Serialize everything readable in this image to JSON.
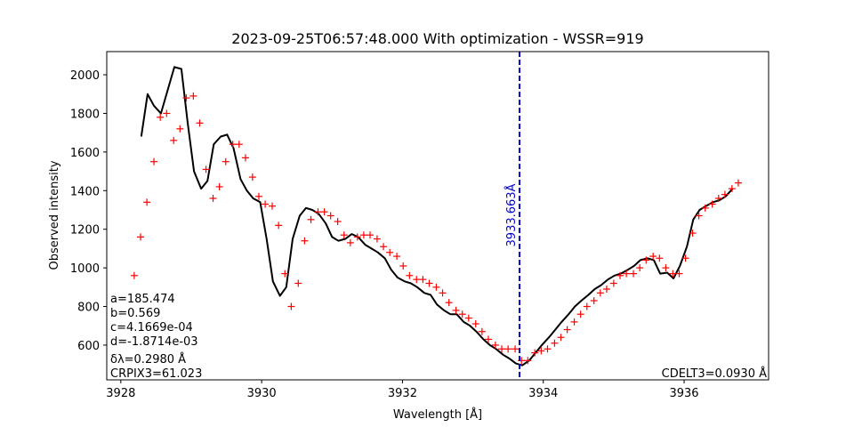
{
  "chart_data": {
    "type": "line",
    "title": "2023-09-25T06:57:48.000 With optimization - WSSR=919",
    "xlabel": "Wavelength [Å]",
    "ylabel": "Observed intensity",
    "xlim": [
      3927.8,
      3937.2
    ],
    "ylim": [
      420,
      2120
    ],
    "xticks": [
      3928,
      3930,
      3932,
      3934,
      3936
    ],
    "yticks": [
      600,
      800,
      1000,
      1200,
      1400,
      1600,
      1800,
      2000
    ],
    "grid": false,
    "series": [
      {
        "kind": "line",
        "color": "#000000",
        "x": [
          3928.29,
          3928.38,
          3928.47,
          3928.57,
          3928.76,
          3928.86,
          3928.95,
          3929.04,
          3929.14,
          3929.23,
          3929.32,
          3929.42,
          3929.51,
          3929.6,
          3929.7,
          3929.79,
          3929.88,
          3929.98,
          3930.07,
          3930.16,
          3930.26,
          3930.35,
          3930.44,
          3930.54,
          3930.63,
          3930.72,
          3930.81,
          3930.91,
          3931.0,
          3931.09,
          3931.19,
          3931.28,
          3931.37,
          3931.47,
          3931.56,
          3931.65,
          3931.75,
          3931.84,
          3931.93,
          3932.03,
          3932.12,
          3932.21,
          3932.31,
          3932.4,
          3932.49,
          3932.59,
          3932.68,
          3932.77,
          3932.87,
          3932.96,
          3933.05,
          3933.15,
          3933.24,
          3933.33,
          3933.43,
          3933.52,
          3933.61,
          3933.7,
          3933.8,
          3933.89,
          3933.98,
          3934.08,
          3934.17,
          3934.26,
          3934.36,
          3934.45,
          3934.54,
          3934.64,
          3934.73,
          3934.82,
          3934.92,
          3935.01,
          3935.1,
          3935.2,
          3935.29,
          3935.38,
          3935.48,
          3935.57,
          3935.66,
          3935.76,
          3935.85,
          3935.94,
          3936.04,
          3936.13,
          3936.22,
          3936.31,
          3936.41,
          3936.5,
          3936.59,
          3936.69
        ],
        "y": [
          1680,
          1900,
          1840,
          1800,
          2040,
          2030,
          1750,
          1500,
          1410,
          1450,
          1640,
          1680,
          1690,
          1620,
          1460,
          1400,
          1360,
          1340,
          1150,
          930,
          855,
          900,
          1150,
          1270,
          1310,
          1300,
          1280,
          1230,
          1160,
          1140,
          1150,
          1175,
          1160,
          1120,
          1100,
          1080,
          1050,
          990,
          950,
          930,
          920,
          900,
          870,
          860,
          810,
          780,
          760,
          760,
          720,
          700,
          670,
          630,
          600,
          580,
          550,
          530,
          505,
          495,
          520,
          560,
          600,
          640,
          680,
          720,
          760,
          800,
          830,
          860,
          890,
          910,
          940,
          960,
          970,
          990,
          1010,
          1040,
          1050,
          1040,
          970,
          975,
          945,
          1010,
          1110,
          1250,
          1300,
          1320,
          1340,
          1350,
          1370,
          1410
        ]
      },
      {
        "kind": "scatter",
        "marker": "+",
        "color": "#ff0000",
        "x": [
          3928.19,
          3928.28,
          3928.37,
          3928.47,
          3928.56,
          3928.65,
          3928.75,
          3928.84,
          3928.93,
          3929.03,
          3929.12,
          3929.21,
          3929.31,
          3929.4,
          3929.49,
          3929.59,
          3929.68,
          3929.77,
          3929.87,
          3929.96,
          3930.05,
          3930.15,
          3930.24,
          3930.33,
          3930.42,
          3930.52,
          3930.61,
          3930.7,
          3930.8,
          3930.89,
          3930.98,
          3931.08,
          3931.17,
          3931.26,
          3931.36,
          3931.45,
          3931.54,
          3931.64,
          3931.73,
          3931.82,
          3931.92,
          3932.01,
          3932.1,
          3932.2,
          3932.29,
          3932.38,
          3932.48,
          3932.57,
          3932.66,
          3932.76,
          3932.85,
          3932.94,
          3933.04,
          3933.13,
          3933.22,
          3933.32,
          3933.41,
          3933.5,
          3933.6,
          3933.69,
          3933.78,
          3933.88,
          3933.97,
          3934.06,
          3934.16,
          3934.25,
          3934.34,
          3934.44,
          3934.53,
          3934.62,
          3934.72,
          3934.81,
          3934.9,
          3935.0,
          3935.09,
          3935.18,
          3935.28,
          3935.37,
          3935.46,
          3935.56,
          3935.65,
          3935.74,
          3935.84,
          3935.93,
          3936.02,
          3936.12,
          3936.21,
          3936.3,
          3936.4,
          3936.49,
          3936.58,
          3936.68,
          3936.77
        ],
        "y": [
          960,
          1160,
          1340,
          1550,
          1780,
          1800,
          1660,
          1720,
          1880,
          1890,
          1750,
          1510,
          1360,
          1420,
          1550,
          1640,
          1640,
          1570,
          1470,
          1370,
          1330,
          1320,
          1220,
          970,
          800,
          920,
          1140,
          1250,
          1290,
          1290,
          1270,
          1240,
          1170,
          1130,
          1160,
          1170,
          1170,
          1150,
          1110,
          1080,
          1060,
          1010,
          960,
          940,
          940,
          920,
          900,
          870,
          820,
          780,
          760,
          740,
          710,
          670,
          630,
          600,
          580,
          580,
          580,
          520,
          520,
          560,
          570,
          580,
          610,
          640,
          680,
          720,
          760,
          800,
          830,
          870,
          890,
          920,
          960,
          970,
          970,
          1000,
          1040,
          1060,
          1050,
          1000,
          970,
          970,
          1050,
          1180,
          1270,
          1310,
          1330,
          1360,
          1380,
          1410,
          1440
        ]
      }
    ],
    "vline": {
      "x": 3933.663,
      "color": "#0000cc",
      "style": "dashed",
      "label": "3933.663Å"
    },
    "annotations": {
      "params": [
        "a=185.474",
        "b=0.569",
        "c=4.1669e-04",
        "d=-1.8714e-03",
        "δλ=0.2980 Å",
        "CRPIX3=61.023"
      ],
      "cdelt": "CDELT3=0.0930 Å"
    }
  }
}
